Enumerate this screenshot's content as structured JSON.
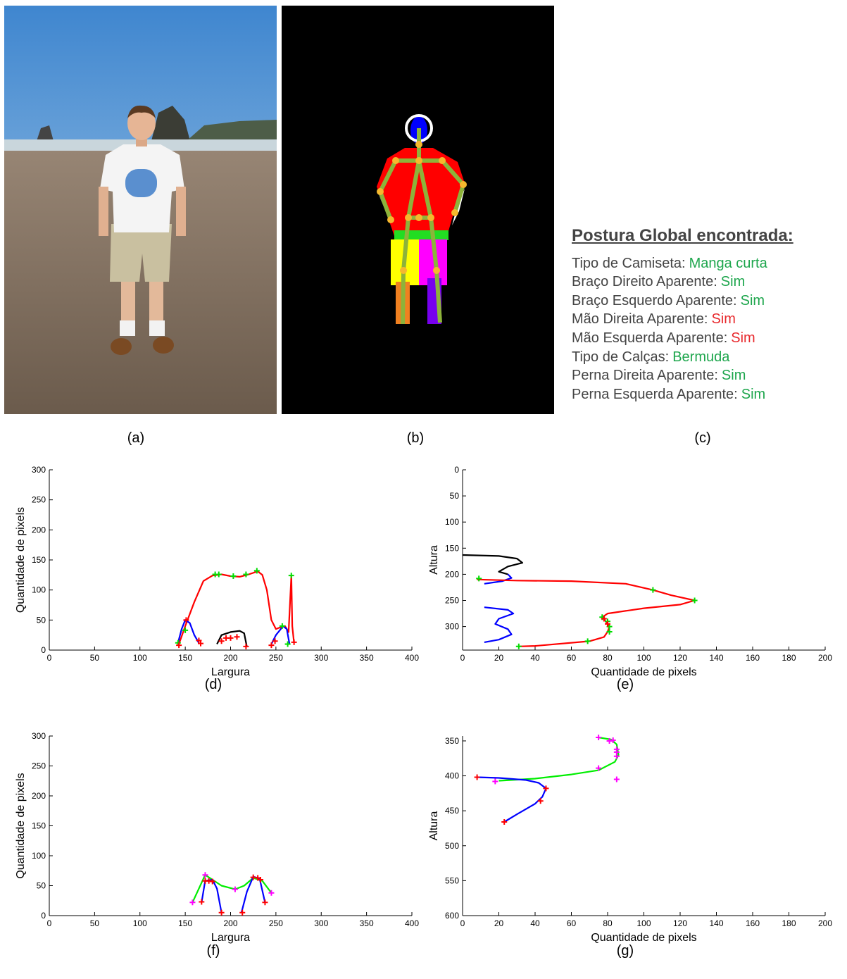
{
  "captions": [
    "(a)",
    "(b)",
    "(c)",
    "(d)",
    "(e)",
    "(f)",
    "(g)"
  ],
  "posture": {
    "title": "Postura Global encontrada:",
    "rows": [
      {
        "label": "Tipo de Camiseta:",
        "value": "Manga curta",
        "color": "#1ea64d"
      },
      {
        "label": "Braço Direito Aparente:",
        "value": "Sim",
        "color": "#1ea64d"
      },
      {
        "label": "Braço Esquerdo Aparente:",
        "value": "Sim",
        "color": "#1ea64d"
      },
      {
        "label": "Mão Direita Aparente:",
        "value": "Sim",
        "color": "#e8292d"
      },
      {
        "label": "Mão Esquerda Aparente:",
        "value": "Sim",
        "color": "#e8292d"
      },
      {
        "label": "Tipo de Calças:",
        "value": "Bermuda",
        "color": "#1ea64d"
      },
      {
        "label": "Perna Direita Aparente:",
        "value": "Sim",
        "color": "#1ea64d"
      },
      {
        "label": "Perna Esquerda Aparente:",
        "value": "Sim",
        "color": "#1ea64d"
      }
    ]
  },
  "chart_data": [
    {
      "type": "line",
      "xlabel": "Largura",
      "ylabel": "Quantidade de pixels",
      "xlim": [
        0,
        400
      ],
      "xticks": [
        0,
        50,
        100,
        150,
        200,
        250,
        300,
        350,
        400
      ],
      "ylim": [
        0,
        300
      ],
      "yticks": [
        0,
        50,
        100,
        150,
        200,
        250,
        300
      ],
      "yreverse": false,
      "series": [
        {
          "color": "#ff0000",
          "mode": "line",
          "x": [
            143,
            150,
            160,
            170,
            180,
            190,
            200,
            210,
            220,
            230,
            235,
            240,
            245,
            250,
            255,
            260,
            264,
            267,
            268,
            270
          ],
          "values": [
            10,
            40,
            80,
            115,
            124,
            126,
            123,
            122,
            126,
            131,
            125,
            100,
            50,
            35,
            38,
            40,
            30,
            124,
            40,
            12
          ]
        },
        {
          "color": "#0000ff",
          "mode": "line",
          "x": [
            142,
            146,
            150,
            155,
            160,
            165
          ],
          "values": [
            12,
            35,
            50,
            45,
            25,
            12
          ]
        },
        {
          "color": "#0000ff",
          "mode": "line",
          "x": [
            245,
            250,
            258,
            262,
            265
          ],
          "values": [
            10,
            25,
            40,
            35,
            10
          ]
        },
        {
          "color": "#000000",
          "mode": "line",
          "x": [
            185,
            190,
            200,
            210,
            215,
            218
          ],
          "values": [
            10,
            25,
            30,
            32,
            28,
            5
          ]
        },
        {
          "color": "#00dd00",
          "mode": "markers",
          "x": [
            142,
            150,
            183,
            187,
            203,
            217,
            229,
            257,
            263,
            267
          ],
          "values": [
            12,
            33,
            126,
            126,
            123,
            126,
            132,
            40,
            10,
            124
          ]
        },
        {
          "color": "#ff0000",
          "mode": "markers",
          "x": [
            143,
            151,
            165,
            167,
            190,
            195,
            200,
            207,
            217,
            245,
            249,
            270
          ],
          "values": [
            8,
            50,
            16,
            11,
            15,
            20,
            20,
            22,
            6,
            8,
            15,
            13
          ]
        }
      ]
    },
    {
      "type": "line",
      "xlabel": "Quantidade de pixels",
      "ylabel": "Altura",
      "xlim": [
        0,
        200
      ],
      "xticks": [
        0,
        20,
        40,
        60,
        80,
        100,
        120,
        140,
        160,
        180,
        200
      ],
      "ylim": [
        0,
        345
      ],
      "yticks": [
        0,
        50,
        100,
        150,
        200,
        250,
        300
      ],
      "yreverse": true,
      "series": [
        {
          "color": "#000000",
          "mode": "line",
          "x": [
            0,
            20,
            30,
            33,
            25,
            20,
            25
          ],
          "values": [
            163,
            165,
            170,
            178,
            185,
            195,
            200
          ]
        },
        {
          "color": "#0000ff",
          "mode": "line",
          "x": [
            25,
            27,
            22,
            12
          ],
          "values": [
            200,
            207,
            213,
            218
          ]
        },
        {
          "color": "#ff0000",
          "mode": "line",
          "x": [
            8,
            30,
            60,
            90,
            105,
            115,
            128,
            120,
            100,
            80,
            77,
            79,
            81,
            80,
            78,
            70,
            40,
            31
          ],
          "values": [
            210,
            212,
            213,
            218,
            230,
            240,
            250,
            258,
            265,
            275,
            282,
            290,
            300,
            310,
            320,
            328,
            337,
            338
          ]
        },
        {
          "color": "#0000ff",
          "mode": "line",
          "x": [
            12,
            25,
            28,
            20,
            18,
            25,
            27,
            20,
            12
          ],
          "values": [
            263,
            268,
            275,
            285,
            295,
            305,
            315,
            325,
            330
          ]
        },
        {
          "color": "#00dd00",
          "mode": "markers",
          "x": [
            9,
            105,
            128,
            77,
            80,
            81,
            81,
            69,
            31
          ],
          "values": [
            208,
            230,
            250,
            282,
            290,
            300,
            310,
            328,
            338
          ]
        },
        {
          "color": "#ff0000",
          "mode": "markers",
          "x": [
            78,
            80
          ],
          "values": [
            285,
            295
          ]
        }
      ]
    },
    {
      "type": "line",
      "xlabel": "Largura",
      "ylabel": "Quantidade de pixels",
      "xlim": [
        0,
        400
      ],
      "xticks": [
        0,
        50,
        100,
        150,
        200,
        250,
        300,
        350,
        400
      ],
      "ylim": [
        0,
        300
      ],
      "yticks": [
        0,
        50,
        100,
        150,
        200,
        250,
        300
      ],
      "yreverse": false,
      "series": [
        {
          "color": "#00ee00",
          "mode": "line",
          "x": [
            158,
            165,
            172,
            180,
            190,
            205,
            215,
            225,
            235,
            245
          ],
          "values": [
            22,
            45,
            68,
            60,
            50,
            44,
            50,
            63,
            58,
            38
          ]
        },
        {
          "color": "#0000ff",
          "mode": "line",
          "x": [
            168,
            172,
            180,
            185,
            190
          ],
          "values": [
            22,
            58,
            60,
            45,
            5
          ]
        },
        {
          "color": "#0000ff",
          "mode": "line",
          "x": [
            212,
            218,
            225,
            232,
            238
          ],
          "values": [
            5,
            40,
            65,
            62,
            22
          ]
        },
        {
          "color": "#ff00ff",
          "mode": "markers",
          "x": [
            158,
            172,
            205,
            245
          ],
          "values": [
            22,
            68,
            44,
            38
          ]
        },
        {
          "color": "#ff0000",
          "mode": "markers",
          "x": [
            168,
            172,
            176,
            180,
            190,
            213,
            225,
            230,
            233,
            238
          ],
          "values": [
            23,
            58,
            58,
            57,
            5,
            5,
            64,
            63,
            60,
            22
          ]
        }
      ]
    },
    {
      "type": "line",
      "xlabel": "Quantidade de pixels",
      "ylabel": "Altura",
      "xlim": [
        0,
        200
      ],
      "xticks": [
        0,
        20,
        40,
        60,
        80,
        100,
        120,
        140,
        160,
        180,
        200
      ],
      "ylim": [
        343,
        600
      ],
      "yticks": [
        350,
        400,
        450,
        500,
        550,
        600
      ],
      "yreverse": true,
      "series": [
        {
          "color": "#00ee00",
          "mode": "line",
          "x": [
            75,
            82,
            85,
            86,
            84,
            75,
            60,
            40,
            20
          ],
          "values": [
            345,
            348,
            355,
            370,
            380,
            392,
            398,
            404,
            407
          ]
        },
        {
          "color": "#0000ff",
          "mode": "line",
          "x": [
            8,
            20,
            35,
            42,
            46,
            44,
            40,
            30,
            23
          ],
          "values": [
            402,
            403,
            406,
            410,
            418,
            430,
            440,
            455,
            466
          ]
        },
        {
          "color": "#ff00ff",
          "mode": "markers",
          "x": [
            75,
            81,
            83,
            85,
            85,
            85,
            75,
            18,
            85
          ],
          "values": [
            345,
            350,
            349,
            362,
            366,
            372,
            389,
            408,
            405
          ]
        },
        {
          "color": "#ff0000",
          "mode": "markers",
          "x": [
            8,
            46,
            43,
            23
          ],
          "values": [
            402,
            418,
            436,
            466
          ]
        }
      ]
    }
  ]
}
